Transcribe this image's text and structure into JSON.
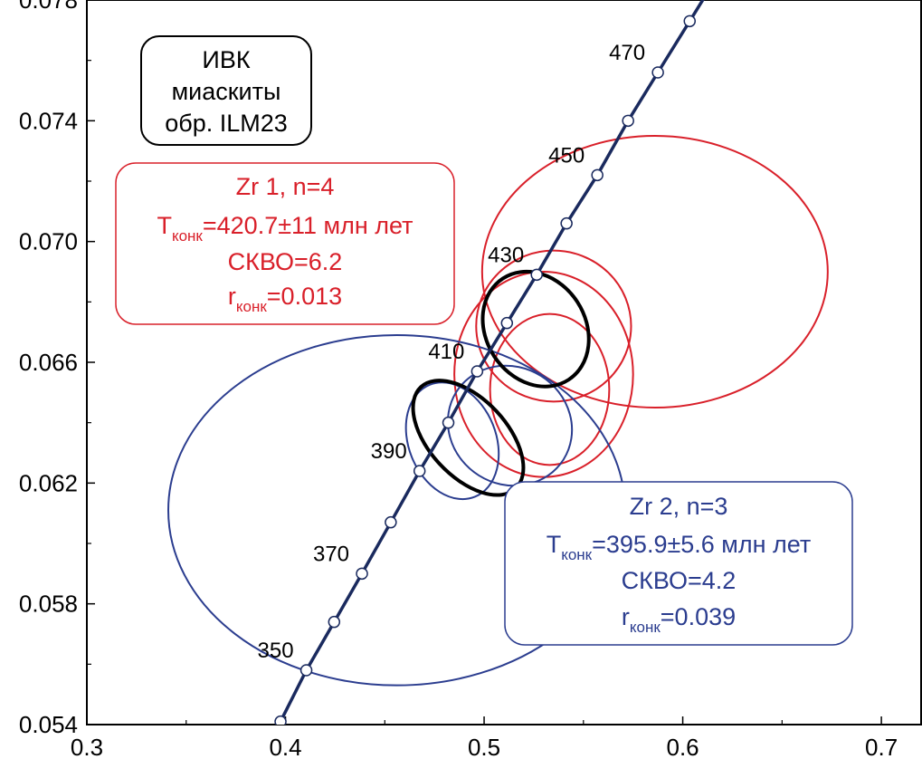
{
  "chart_data": {
    "type": "scatter",
    "title": "",
    "xlabel": "",
    "ylabel": "",
    "xlim": [
      0.3,
      0.72
    ],
    "ylim": [
      0.054,
      0.078
    ],
    "x_ticks": [
      0.3,
      0.4,
      0.5,
      0.6,
      0.7
    ],
    "x_tick_labels": [
      "0.3",
      "0.4",
      "0.5",
      "0.6",
      "0.7"
    ],
    "y_ticks": [
      0.054,
      0.058,
      0.062,
      0.066,
      0.07,
      0.074,
      0.078
    ],
    "y_tick_labels": [
      "0.054",
      "0.058",
      "0.062",
      "0.066",
      "0.070",
      "0.074",
      "0.078"
    ],
    "concordia": {
      "color": "#1a2a5e",
      "ages": [
        340,
        350,
        360,
        370,
        380,
        390,
        400,
        410,
        420,
        430,
        440,
        450,
        460,
        470,
        480
      ],
      "points": [
        {
          "age": 340,
          "x": 0.3975,
          "y": 0.0541
        },
        {
          "age": 350,
          "x": 0.4105,
          "y": 0.0558
        },
        {
          "age": 360,
          "x": 0.4245,
          "y": 0.0574
        },
        {
          "age": 370,
          "x": 0.4385,
          "y": 0.059
        },
        {
          "age": 380,
          "x": 0.453,
          "y": 0.0607
        },
        {
          "age": 390,
          "x": 0.4675,
          "y": 0.0624
        },
        {
          "age": 400,
          "x": 0.482,
          "y": 0.064
        },
        {
          "age": 410,
          "x": 0.4965,
          "y": 0.0657
        },
        {
          "age": 420,
          "x": 0.5115,
          "y": 0.0673
        },
        {
          "age": 430,
          "x": 0.5265,
          "y": 0.0689
        },
        {
          "age": 440,
          "x": 0.5415,
          "y": 0.0706
        },
        {
          "age": 450,
          "x": 0.557,
          "y": 0.0722
        },
        {
          "age": 460,
          "x": 0.5725,
          "y": 0.074
        },
        {
          "age": 470,
          "x": 0.5875,
          "y": 0.0756
        },
        {
          "age": 480,
          "x": 0.6035,
          "y": 0.0773
        }
      ],
      "labeled_ages": [
        {
          "label": "350",
          "x": 0.4105,
          "y": 0.0558,
          "side": "left"
        },
        {
          "label": "370",
          "x": 0.4385,
          "y": 0.059,
          "side": "left"
        },
        {
          "label": "390",
          "x": 0.4675,
          "y": 0.0624,
          "side": "left"
        },
        {
          "label": "410",
          "x": 0.4965,
          "y": 0.0657,
          "side": "left"
        },
        {
          "label": "430",
          "x": 0.5265,
          "y": 0.0689,
          "side": "left"
        },
        {
          "label": "450",
          "x": 0.557,
          "y": 0.0722,
          "side": "left"
        },
        {
          "label": "470",
          "x": 0.5875,
          "y": 0.0756,
          "side": "left"
        }
      ]
    },
    "ellipses": [
      {
        "group": "Zr 1",
        "color": "#d9202a",
        "cx": 0.586,
        "cy": 0.069,
        "rx": 0.087,
        "ry": 0.0045,
        "rot": 0
      },
      {
        "group": "Zr 1",
        "color": "#d9202a",
        "cx": 0.535,
        "cy": 0.0672,
        "rx": 0.039,
        "ry": 0.0025,
        "rot": 0
      },
      {
        "group": "Zr 1",
        "color": "#d9202a",
        "cx": 0.53,
        "cy": 0.0656,
        "rx": 0.045,
        "ry": 0.0034,
        "rot": 0
      },
      {
        "group": "Zr 1",
        "color": "#d9202a",
        "cx": 0.533,
        "cy": 0.0651,
        "rx": 0.03,
        "ry": 0.0025,
        "rot": 0
      },
      {
        "group": "Zr 2",
        "color": "#2b3d8f",
        "cx": 0.456,
        "cy": 0.0611,
        "rx": 0.115,
        "ry": 0.0058,
        "rot": 0
      },
      {
        "group": "Zr 2",
        "color": "#2b3d8f",
        "cx": 0.484,
        "cy": 0.0634,
        "rx": 0.022,
        "ry": 0.002,
        "rot": -22
      },
      {
        "group": "Zr 2",
        "color": "#2b3d8f",
        "cx": 0.513,
        "cy": 0.0639,
        "rx": 0.0295,
        "ry": 0.0021,
        "rot": -58
      },
      {
        "group": "concordia-age",
        "color": "#000000",
        "cx": 0.526,
        "cy": 0.0671,
        "rx": 0.025,
        "ry": 0.002,
        "rot": -33
      },
      {
        "group": "concordia-age",
        "color": "#000000",
        "cx": 0.492,
        "cy": 0.0635,
        "rx": 0.0195,
        "ry": 0.0023,
        "rot": -43
      }
    ]
  },
  "sample_box": {
    "line1": "ИВК",
    "line2": "миаскиты",
    "line3": "обр. ILM23",
    "border_color": "#000000"
  },
  "zr1_box": {
    "color": "#d9202a",
    "title": "Zr 1, n=4",
    "age_prefix": "T",
    "age_sub": "конк",
    "age_value": "=420.7±11 млн лет",
    "mswd": "СКВО=6.2",
    "r_prefix": "r",
    "r_sub": "конк",
    "r_value": "=0.013"
  },
  "zr2_box": {
    "color": "#2b3d8f",
    "title": "Zr 2, n=3",
    "age_prefix": "T",
    "age_sub": "конк",
    "age_value": "=395.9±5.6 млн лет",
    "mswd": "СКВО=4.2",
    "r_prefix": "r",
    "r_sub": "конк",
    "r_value": "=0.039"
  }
}
